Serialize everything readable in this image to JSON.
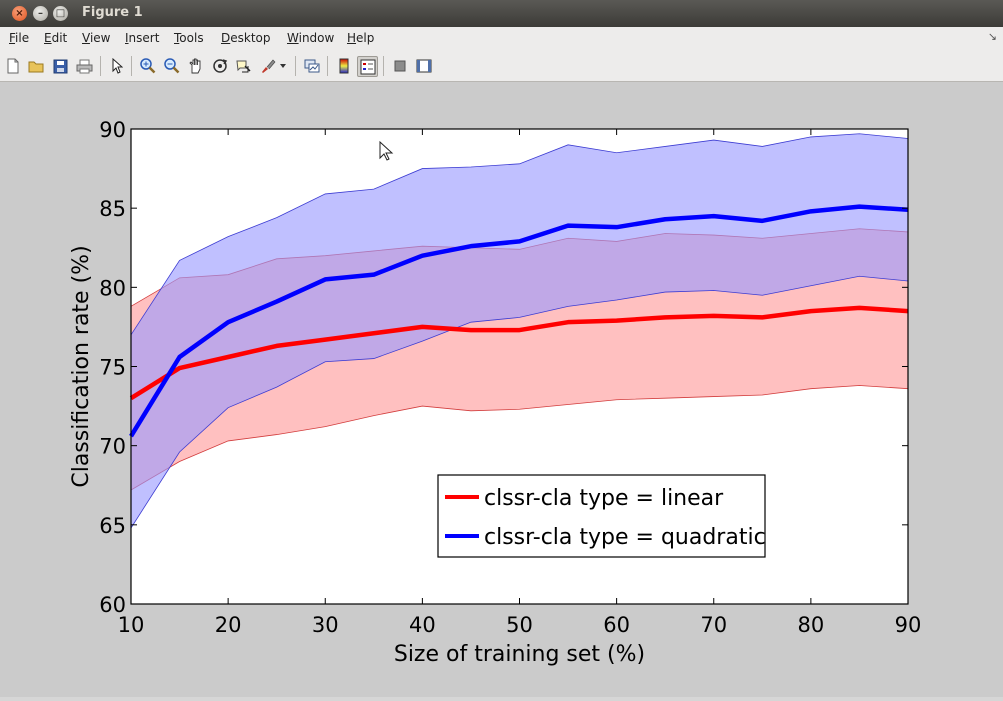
{
  "window": {
    "title": "Figure 1",
    "close_glyph": "×",
    "min_glyph": "–",
    "max_glyph": "□"
  },
  "menubar": {
    "items": [
      {
        "label": "File",
        "u": "F",
        "rest": "ile"
      },
      {
        "label": "Edit",
        "u": "E",
        "rest": "dit"
      },
      {
        "label": "View",
        "u": "V",
        "rest": "iew"
      },
      {
        "label": "Insert",
        "u": "I",
        "rest": "nsert"
      },
      {
        "label": "Tools",
        "u": "T",
        "rest": "ools"
      },
      {
        "label": "Desktop",
        "u": "D",
        "rest": "esktop"
      },
      {
        "label": "Window",
        "u": "W",
        "rest": "indow"
      },
      {
        "label": "Help",
        "u": "H",
        "rest": "elp"
      }
    ],
    "grip_glyph": "↘"
  },
  "toolbar": {
    "icons": [
      "new-file-icon",
      "open-file-icon",
      "save-icon",
      "print-icon",
      "pointer-icon",
      "zoom-in-icon",
      "zoom-out-icon",
      "pan-icon",
      "rotate-3d-icon",
      "data-cursor-icon",
      "brush-icon",
      "brush-dropdown-icon",
      "link-plot-icon",
      "colorbar-icon",
      "legend-icon",
      "hide-plot-tools-icon",
      "show-plot-tools-icon"
    ]
  },
  "colors": {
    "linear": "#ff0000",
    "quadratic": "#0000ff",
    "linear_fill": "#ff9a9a",
    "quadratic_fill": "#9a9aff"
  },
  "chart_data": {
    "type": "line",
    "title": "",
    "xlabel": "Size of training set (%)",
    "ylabel": "Classification rate (%)",
    "xlim": [
      10,
      90
    ],
    "ylim": [
      60,
      90
    ],
    "xticks": [
      10,
      20,
      30,
      40,
      50,
      60,
      70,
      80,
      90
    ],
    "yticks": [
      60,
      65,
      70,
      75,
      80,
      85,
      90
    ],
    "grid": false,
    "legend_position": "lower-right",
    "x": [
      10,
      15,
      20,
      25,
      30,
      35,
      40,
      45,
      50,
      55,
      60,
      65,
      70,
      75,
      80,
      85,
      90
    ],
    "series": [
      {
        "name": "clssr-cla type = linear",
        "color": "#ff0000",
        "values": [
          73.0,
          74.9,
          75.6,
          76.3,
          76.7,
          77.1,
          77.5,
          77.3,
          77.3,
          77.8,
          77.9,
          78.1,
          78.2,
          78.1,
          78.5,
          78.7,
          78.5
        ],
        "upper": [
          78.8,
          80.6,
          80.8,
          81.8,
          82.0,
          82.3,
          82.6,
          82.5,
          82.4,
          83.1,
          82.9,
          83.4,
          83.3,
          83.1,
          83.4,
          83.7,
          83.5
        ],
        "lower": [
          67.2,
          69.0,
          70.3,
          70.7,
          71.2,
          71.9,
          72.5,
          72.2,
          72.3,
          72.6,
          72.9,
          73.0,
          73.1,
          73.2,
          73.6,
          73.8,
          73.6
        ]
      },
      {
        "name": "clssr-cla type = quadratic",
        "color": "#0000ff",
        "values": [
          70.6,
          75.6,
          77.8,
          79.1,
          80.5,
          80.8,
          82.0,
          82.6,
          82.9,
          83.9,
          83.8,
          84.3,
          84.5,
          84.2,
          84.8,
          85.1,
          84.9
        ],
        "upper": [
          77.0,
          81.7,
          83.2,
          84.4,
          85.9,
          86.2,
          87.5,
          87.6,
          87.8,
          89.0,
          88.5,
          88.9,
          89.3,
          88.9,
          89.5,
          89.7,
          89.4
        ],
        "lower": [
          64.8,
          69.6,
          72.4,
          73.7,
          75.3,
          75.5,
          76.6,
          77.8,
          78.1,
          78.8,
          79.2,
          79.7,
          79.8,
          79.5,
          80.1,
          80.7,
          80.4
        ]
      }
    ]
  }
}
